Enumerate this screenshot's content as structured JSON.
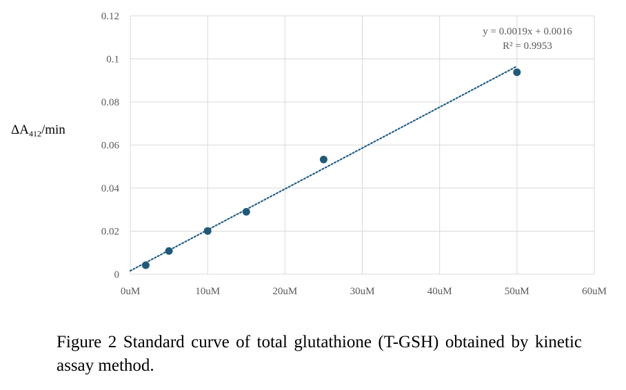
{
  "chart_data": {
    "type": "scatter",
    "x_unit": "uM",
    "x_ticks": [
      "0uM",
      "10uM",
      "20uM",
      "30uM",
      "40uM",
      "50uM",
      "60uM"
    ],
    "y_ticks": [
      "0",
      "0.02",
      "0.04",
      "0.06",
      "0.08",
      "0.1",
      "0.12"
    ],
    "xlim": [
      0,
      60
    ],
    "ylim": [
      0,
      0.12
    ],
    "grid": true,
    "ylabel_main": "ΔA",
    "ylabel_sub": "412",
    "ylabel_tail": "/min",
    "points": [
      {
        "x": 2,
        "y": 0.0042
      },
      {
        "x": 5,
        "y": 0.0108
      },
      {
        "x": 10,
        "y": 0.0201
      },
      {
        "x": 15,
        "y": 0.029
      },
      {
        "x": 25,
        "y": 0.0533
      },
      {
        "x": 50,
        "y": 0.0938
      }
    ],
    "trendline": {
      "slope": 0.0019,
      "intercept": 0.0016,
      "x_range": [
        0,
        50
      ],
      "equation": "y = 0.0019x + 0.0016",
      "r_squared": "R² = 0.9953"
    },
    "marker_color": "#1f5a7a",
    "trend_color": "#1f5f8b",
    "grid_color": "#d9d9d9"
  },
  "caption": "Figure 2 Standard curve of total glutathione (T-GSH) obtained by kinetic assay method."
}
